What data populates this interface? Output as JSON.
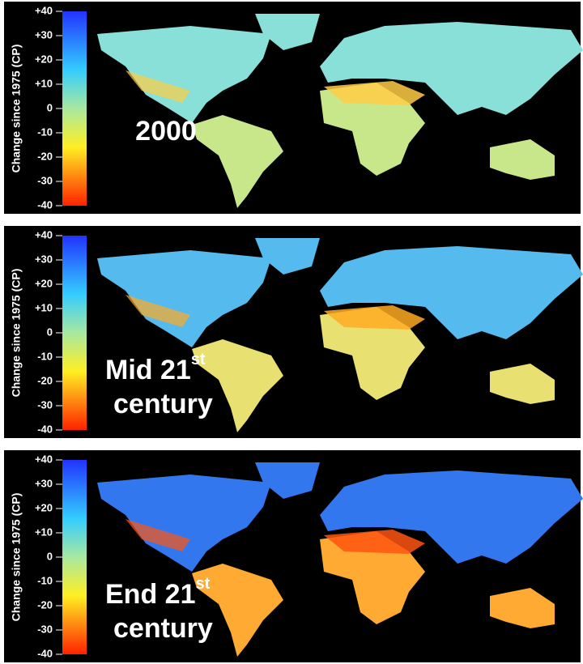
{
  "colorbar": {
    "title": "Change since 1975 (CP)",
    "ticks": [
      {
        "value": 40,
        "label": "+40"
      },
      {
        "value": 30,
        "label": "+30"
      },
      {
        "value": 20,
        "label": "+20"
      },
      {
        "value": 10,
        "label": "+10"
      },
      0,
      -10,
      -20,
      -30,
      -40
    ]
  },
  "panels": [
    {
      "label": "2000"
    },
    {
      "label": "Mid 21",
      "superscript": "st",
      "label_line2": "century"
    },
    {
      "label": "End 21",
      "superscript": "st",
      "label_line2": "century"
    }
  ]
}
